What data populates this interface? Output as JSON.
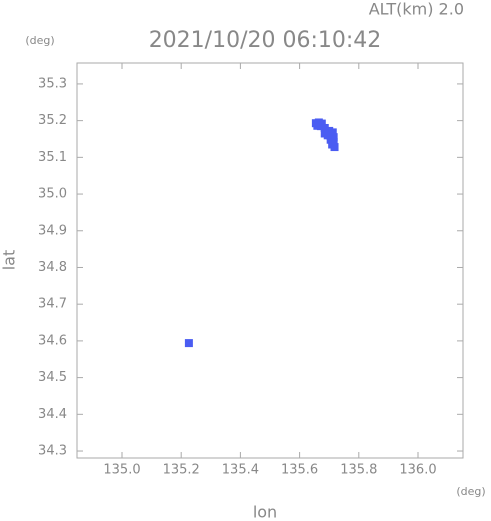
{
  "chart_data": {
    "type": "scatter",
    "title": "2021/10/20 06:10:42",
    "subtitle": "ALT(km) 2.0",
    "y_unit": "(deg)",
    "x_unit": "(deg)",
    "x_label": "lon",
    "y_label": "lat",
    "color": "#4a5cf2",
    "x": [
      135.655,
      135.665,
      135.675,
      135.66,
      135.672,
      135.685,
      135.69,
      135.7,
      135.712,
      135.695,
      135.705,
      135.715,
      135.705,
      135.715,
      135.71,
      135.718,
      135.685,
      135.226
    ],
    "values": [
      35.193,
      35.195,
      35.192,
      35.186,
      35.185,
      35.18,
      35.17,
      35.172,
      35.168,
      35.16,
      35.158,
      35.155,
      35.148,
      35.142,
      35.135,
      35.128,
      35.165,
      34.594
    ],
    "xlim": [
      134.848,
      136.152
    ],
    "ylim": [
      34.281,
      35.357
    ],
    "xticks": [
      {
        "value": 135.0,
        "label": "135.0"
      },
      135.2,
      135.4,
      135.6,
      135.8,
      {
        "value": 136.0,
        "label": "136.0"
      }
    ],
    "yticks": [
      34.3,
      34.4,
      34.5,
      34.6,
      34.7,
      34.8,
      34.9,
      {
        "value": 35.0,
        "label": "35.0"
      },
      35.1,
      35.2,
      35.3
    ]
  }
}
